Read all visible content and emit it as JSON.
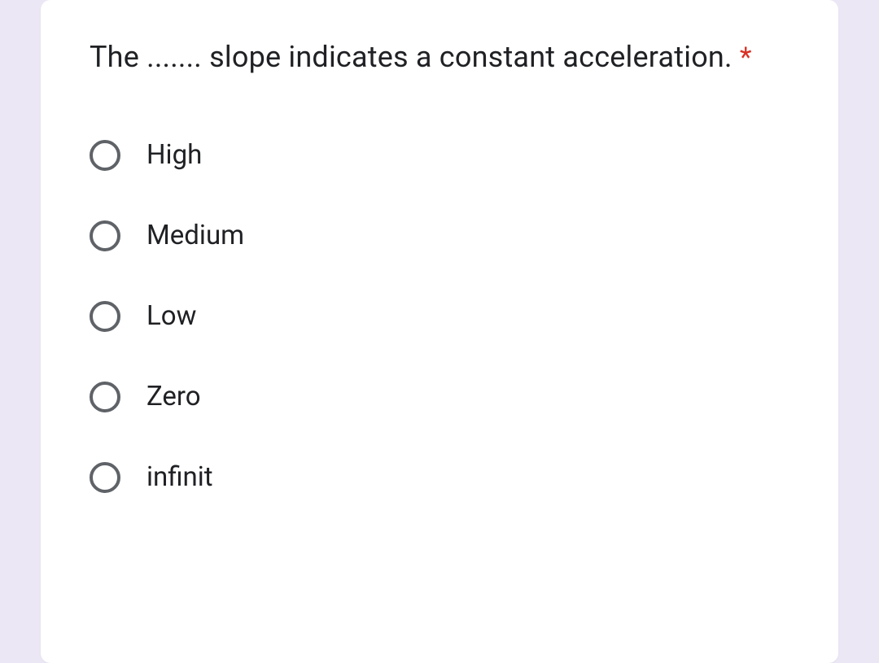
{
  "question": {
    "text": "The ....... slope indicates a constant acceleration.",
    "required_marker": "*"
  },
  "options": [
    {
      "label": "High"
    },
    {
      "label": "Medium"
    },
    {
      "label": "Low"
    },
    {
      "label": "Zero"
    },
    {
      "label": "infinit"
    }
  ],
  "colors": {
    "page_bg": "#ece7f5",
    "card_bg": "#ffffff",
    "text": "#202124",
    "radio_border": "#5f6368",
    "required": "#d93025"
  }
}
